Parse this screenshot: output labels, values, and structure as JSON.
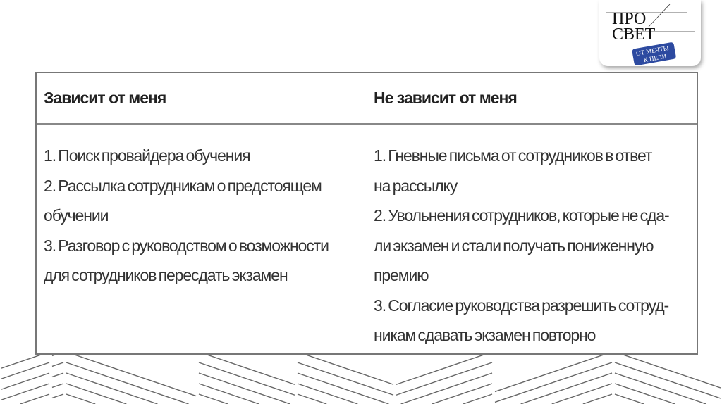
{
  "logo": {
    "line1": "ПРО",
    "line2": "СВЕТ",
    "badge": "ОТ МЕЧТЫ К ЦЕЛИ",
    "badge_color": "#2d4aa0"
  },
  "table": {
    "headers": [
      "Зависит от меня",
      "Не зависит от меня"
    ],
    "left_lines": [
      "1. Поиск провайдера обучения",
      "2. Рассылка сотрудникам о предстоящем",
      "обучении",
      "3. Разговор с руководством о возможности",
      "для сотрудников пересдать экзамен"
    ],
    "right_lines": [
      "1. Гневные письма от сотрудников в ответ",
      "на рассылку",
      "2. Увольнения сотрудников, которые не сда-",
      "ли экзамен и стали получать пониженную",
      "премию",
      "3. Согласие руководства разрешить сотруд-",
      "никам сдавать экзамен повторно"
    ]
  }
}
